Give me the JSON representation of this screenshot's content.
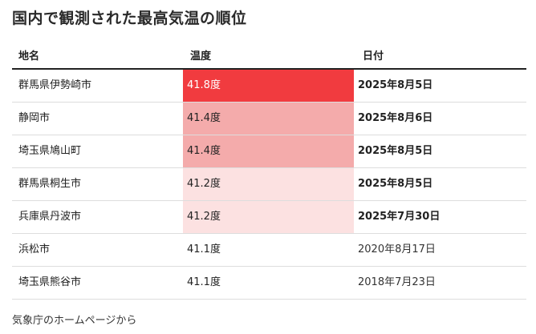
{
  "title": "国内で観測された最高気温の順位",
  "table": {
    "headers": {
      "place": "地名",
      "temp": "温度",
      "date": "日付"
    },
    "rows": [
      {
        "place": "群馬県伊勢崎市",
        "temp": "41.8度",
        "date": "2025年8月5日",
        "date_bold": true,
        "temp_bg": "#f13b3f",
        "temp_color": "#ffffff"
      },
      {
        "place": "静岡市",
        "temp": "41.4度",
        "date": "2025年8月6日",
        "date_bold": true,
        "temp_bg": "#f4abab",
        "temp_color": "#222222"
      },
      {
        "place": "埼玉県鳩山町",
        "temp": "41.4度",
        "date": "2025年8月5日",
        "date_bold": true,
        "temp_bg": "#f4abab",
        "temp_color": "#222222"
      },
      {
        "place": "群馬県桐生市",
        "temp": "41.2度",
        "date": "2025年8月5日",
        "date_bold": true,
        "temp_bg": "#fce1e1",
        "temp_color": "#222222"
      },
      {
        "place": "兵庫県丹波市",
        "temp": "41.2度",
        "date": "2025年7月30日",
        "date_bold": true,
        "temp_bg": "#fce1e1",
        "temp_color": "#222222"
      },
      {
        "place": "浜松市",
        "temp": "41.1度",
        "date": "2020年8月17日",
        "date_bold": false,
        "temp_bg": "#ffffff",
        "temp_color": "#222222"
      },
      {
        "place": "埼玉県熊谷市",
        "temp": "41.1度",
        "date": "2018年7月23日",
        "date_bold": false,
        "temp_bg": "#ffffff",
        "temp_color": "#222222"
      }
    ]
  },
  "footer": "気象庁のホームページから"
}
